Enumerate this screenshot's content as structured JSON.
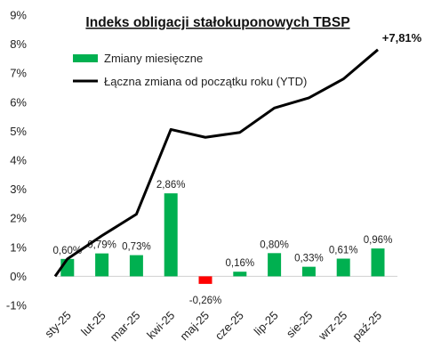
{
  "chart_data": {
    "type": "bar+line",
    "title": "Indeks obligacji stałokuponowych TBSP",
    "categories": [
      "sty-25",
      "lut-25",
      "mar-25",
      "kwi-25",
      "maj-25",
      "cze-25",
      "lip-25",
      "sie-25",
      "wrz-25",
      "paź-25"
    ],
    "series": [
      {
        "name": "Zmiany miesięczne",
        "kind": "bar",
        "color": "#00b050",
        "negative_color": "#ff0000",
        "values": [
          0.6,
          0.79,
          0.73,
          2.86,
          -0.26,
          0.16,
          0.8,
          0.33,
          0.61,
          0.96
        ],
        "labels": [
          "0,60%",
          "0,79%",
          "0,73%",
          "2,86%",
          "-0,26%",
          "0,16%",
          "0,80%",
          "0,33%",
          "0,61%",
          "0,96%"
        ]
      },
      {
        "name": "Łączna zmiana od początku roku (YTD)",
        "kind": "line",
        "color": "#000000",
        "start_value": 0,
        "values": [
          0.6,
          1.4,
          2.14,
          5.06,
          4.79,
          4.96,
          5.8,
          6.15,
          6.8,
          7.81
        ]
      }
    ],
    "final_label": "+7,81%",
    "y_ticks": [
      "-1%",
      "0%",
      "1%",
      "2%",
      "3%",
      "4%",
      "5%",
      "6%",
      "7%",
      "8%",
      "9%"
    ],
    "ylim": [
      -1,
      9
    ],
    "grid": false,
    "legend": "top-left"
  }
}
